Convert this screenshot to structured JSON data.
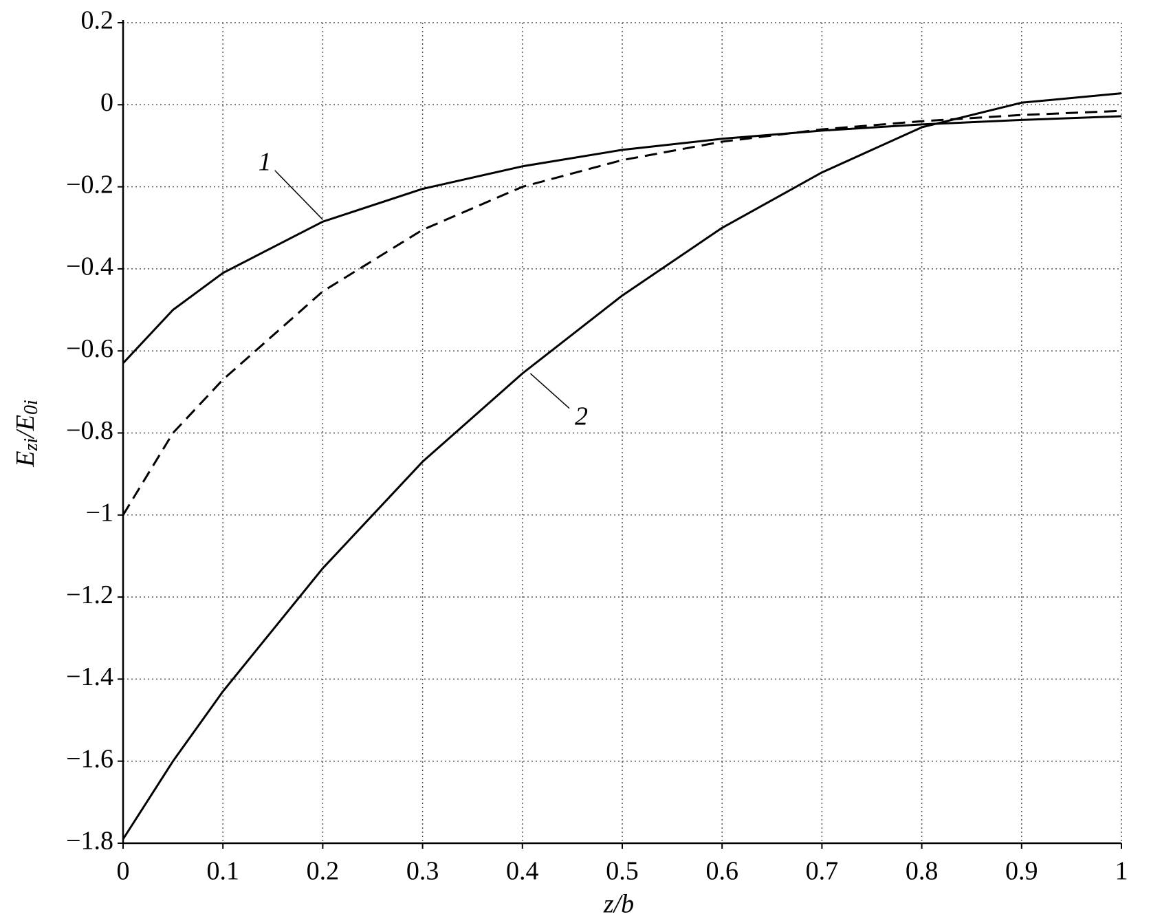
{
  "chart_data": {
    "type": "line",
    "xlabel": "z/b",
    "ylabel": [
      "E",
      "zi",
      "/E",
      "0i"
    ],
    "x": [
      0,
      0.05,
      0.1,
      0.2,
      0.3,
      0.4,
      0.5,
      0.6,
      0.7,
      0.8,
      0.9,
      1.0
    ],
    "series": [
      {
        "name": "1",
        "color": "#000000",
        "dash": false,
        "values": [
          -0.63,
          -0.5,
          -0.41,
          -0.285,
          -0.205,
          -0.15,
          -0.11,
          -0.083,
          -0.063,
          -0.048,
          -0.037,
          -0.028
        ]
      },
      {
        "color": "#000000",
        "dash": true,
        "values": [
          -1.0,
          -0.8,
          -0.67,
          -0.455,
          -0.305,
          -0.2,
          -0.135,
          -0.09,
          -0.06,
          -0.04,
          -0.025,
          -0.015
        ]
      },
      {
        "name": "2",
        "color": "#000000",
        "dash": false,
        "values": [
          -1.79,
          -1.6,
          -1.43,
          -1.13,
          -0.87,
          -0.655,
          -0.465,
          -0.3,
          -0.165,
          -0.055,
          0.005,
          0.028
        ]
      }
    ],
    "xlim": [
      0,
      1
    ],
    "ylim": [
      -1.8,
      0.2
    ],
    "xticks": [
      0,
      0.1,
      0.2,
      0.3,
      0.4,
      0.5,
      0.6,
      0.7,
      0.8,
      0.9,
      1
    ],
    "yticks": [
      {
        "value": -1.8,
        "label": "−1.8"
      },
      {
        "value": -1.6,
        "label": "−1.6"
      },
      {
        "value": -1.4,
        "label": "−1.4"
      },
      {
        "value": -1.2,
        "label": "−1.2"
      },
      {
        "value": -1,
        "label": "−1"
      },
      {
        "value": -0.8,
        "label": "−0.8"
      },
      {
        "value": -0.6,
        "label": "−0.6"
      },
      {
        "value": -0.4,
        "label": "−0.4"
      },
      {
        "value": -0.2,
        "label": "−0.2"
      },
      0,
      0.2
    ],
    "grid": true
  }
}
